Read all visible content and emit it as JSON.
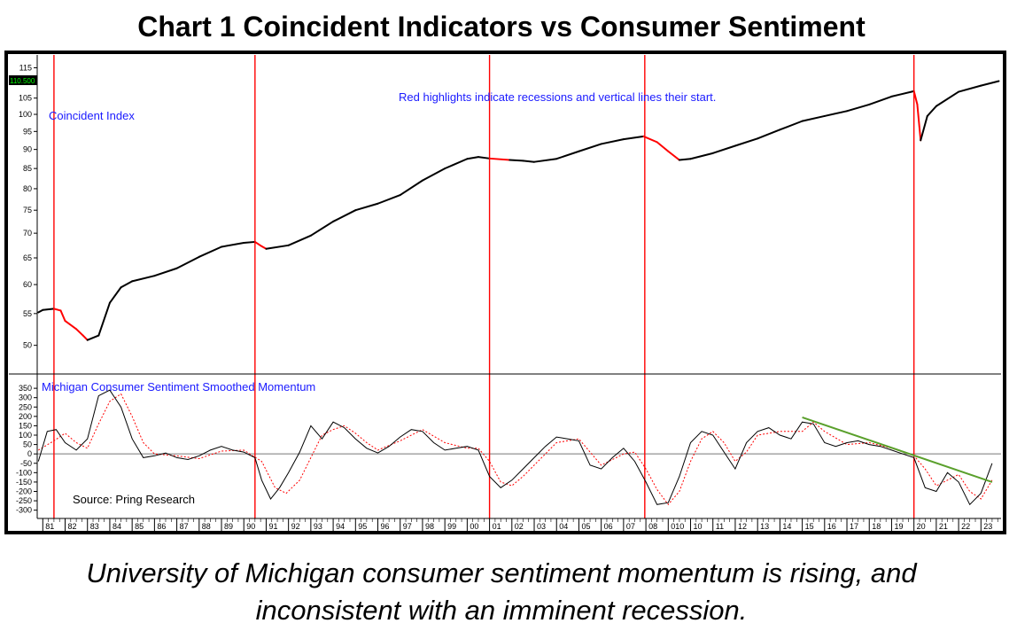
{
  "title": "Chart 1 Coincident Indicators vs Consumer Sentiment",
  "caption_line1": "University of Michigan consumer sentiment momentum is rising, and",
  "caption_line2": "inconsistent with an imminent recession.",
  "annotations": {
    "recession_note": "Red highlights indicate recessions and vertical lines their start.",
    "upper_panel_label": "Coincident Index",
    "lower_panel_label": "Michigan Consumer Sentiment Smoothed Momentum",
    "source": "Source: Pring Research",
    "last_value_badge": "110.500"
  },
  "colors": {
    "index_line": "#000000",
    "recession_highlight": "#ff0000",
    "recession_start_line": "#ff0000",
    "momentum_line": "#000000",
    "momentum_signal": "#ff0000",
    "trendline": "#5aa02c",
    "annotation_text": "#1a1aff",
    "badge_background": "#000000",
    "badge_text": "#00ff00"
  },
  "chart_data": [
    {
      "type": "line",
      "name": "Coincident Index",
      "y_scale": "log",
      "ylim": [
        48,
        117
      ],
      "yticks": [
        50,
        55,
        60,
        65,
        70,
        75,
        80,
        85,
        90,
        95,
        100,
        105,
        110,
        115
      ],
      "xlim": [
        1980.75,
        2023.9
      ],
      "x": [
        1980.8,
        1981.0,
        1981.5,
        1981.8,
        1982.0,
        1982.5,
        1982.8,
        1983.0,
        1983.5,
        1984.0,
        1984.5,
        1985.0,
        1986.0,
        1987.0,
        1988.0,
        1989.0,
        1990.0,
        1990.5,
        1990.8,
        1991.0,
        1992.0,
        1993.0,
        1994.0,
        1995.0,
        1996.0,
        1997.0,
        1998.0,
        1999.0,
        2000.0,
        2000.5,
        2001.0,
        2001.9,
        2002.5,
        2003.0,
        2004.0,
        2005.0,
        2006.0,
        2007.0,
        2007.9,
        2008.5,
        2009.0,
        2009.5,
        2010.0,
        2011.0,
        2012.0,
        2013.0,
        2014.0,
        2015.0,
        2016.0,
        2017.0,
        2018.0,
        2019.0,
        2020.0,
        2020.15,
        2020.3,
        2020.6,
        2021.0,
        2022.0,
        2023.0,
        2023.8
      ],
      "y": [
        55.2,
        55.6,
        55.8,
        55.5,
        53.8,
        52.5,
        51.5,
        50.8,
        51.5,
        56.8,
        59.5,
        60.6,
        61.6,
        63.0,
        65.2,
        67.2,
        68.0,
        68.2,
        67.3,
        66.8,
        67.5,
        69.5,
        72.5,
        75.0,
        76.5,
        78.5,
        82.0,
        85.0,
        87.5,
        88.0,
        87.6,
        87.2,
        87.0,
        86.7,
        87.5,
        89.5,
        91.5,
        92.8,
        93.6,
        92.0,
        89.5,
        87.2,
        87.5,
        89.0,
        91.0,
        93.0,
        95.5,
        98.0,
        99.5,
        101.0,
        103.0,
        105.5,
        107.2,
        103.0,
        92.5,
        99.5,
        102.5,
        107.0,
        109.0,
        110.5
      ],
      "recession_periods": [
        [
          1981.5,
          1982.9
        ],
        [
          1990.5,
          1991.2
        ],
        [
          2001.2,
          2001.9
        ],
        [
          2007.95,
          2009.5
        ],
        [
          2020.0,
          2020.35
        ]
      ]
    },
    {
      "type": "line",
      "name": "Michigan Consumer Sentiment Smoothed Momentum",
      "ylim": [
        -330,
        360
      ],
      "yticks": [
        350,
        300,
        250,
        200,
        150,
        100,
        50,
        0,
        -50,
        -100,
        -150,
        -200,
        -250,
        -300
      ],
      "series": [
        {
          "name": "momentum",
          "x": [
            1980.8,
            1981.2,
            1981.6,
            1982.0,
            1982.5,
            1983.0,
            1983.5,
            1984.0,
            1984.5,
            1985.0,
            1985.5,
            1986.0,
            1986.5,
            1987.0,
            1987.5,
            1988.0,
            1988.5,
            1989.0,
            1989.5,
            1990.0,
            1990.5,
            1990.8,
            1991.2,
            1991.6,
            1992.0,
            1992.5,
            1993.0,
            1993.5,
            1994.0,
            1994.5,
            1995.0,
            1995.5,
            1996.0,
            1996.5,
            1997.0,
            1997.5,
            1998.0,
            1998.5,
            1999.0,
            1999.5,
            2000.0,
            2000.5,
            2001.0,
            2001.5,
            2002.0,
            2002.5,
            2003.0,
            2003.5,
            2004.0,
            2004.5,
            2005.0,
            2005.5,
            2006.0,
            2006.5,
            2007.0,
            2007.5,
            2008.0,
            2008.5,
            2009.0,
            2009.5,
            2010.0,
            2010.5,
            2011.0,
            2011.5,
            2012.0,
            2012.5,
            2013.0,
            2013.5,
            2014.0,
            2014.5,
            2015.0,
            2015.5,
            2016.0,
            2016.5,
            2017.0,
            2017.5,
            2018.0,
            2018.5,
            2019.0,
            2019.5,
            2020.0,
            2020.5,
            2021.0,
            2021.5,
            2022.0,
            2022.5,
            2023.0,
            2023.5
          ],
          "y": [
            -40,
            120,
            130,
            60,
            20,
            80,
            310,
            340,
            250,
            80,
            -20,
            -10,
            5,
            -20,
            -30,
            -10,
            20,
            40,
            20,
            10,
            -20,
            -140,
            -240,
            -180,
            -100,
            10,
            150,
            80,
            170,
            140,
            80,
            30,
            5,
            40,
            90,
            130,
            120,
            60,
            20,
            30,
            40,
            20,
            -120,
            -180,
            -140,
            -80,
            -20,
            40,
            90,
            80,
            70,
            -60,
            -80,
            -20,
            30,
            -40,
            -150,
            -270,
            -260,
            -120,
            60,
            120,
            100,
            10,
            -80,
            60,
            120,
            140,
            100,
            80,
            170,
            160,
            60,
            40,
            60,
            70,
            50,
            40,
            20,
            0,
            -20,
            -180,
            -200,
            -100,
            -150,
            -270,
            -210,
            -50
          ]
        },
        {
          "name": "signal",
          "x": [
            1980.8,
            1981.5,
            1982.0,
            1982.5,
            1983.0,
            1983.5,
            1984.0,
            1984.5,
            1985.0,
            1985.5,
            1986.0,
            1987.0,
            1988.0,
            1989.0,
            1990.0,
            1990.8,
            1991.4,
            1991.9,
            1992.5,
            1993.0,
            1993.5,
            1994.0,
            1994.5,
            1995.0,
            1995.5,
            1996.0,
            1997.0,
            1998.0,
            1999.0,
            2000.0,
            2000.5,
            2001.0,
            2001.5,
            2002.0,
            2002.5,
            2003.0,
            2004.0,
            2005.0,
            2005.5,
            2006.0,
            2007.0,
            2007.5,
            2008.0,
            2008.5,
            2009.0,
            2009.5,
            2010.0,
            2010.5,
            2011.0,
            2011.5,
            2012.0,
            2012.5,
            2013.0,
            2014.0,
            2015.0,
            2015.5,
            2016.0,
            2017.0,
            2018.0,
            2019.0,
            2020.0,
            2020.5,
            2021.0,
            2021.5,
            2022.0,
            2022.5,
            2023.0,
            2023.5
          ],
          "y": [
            20,
            70,
            110,
            60,
            30,
            160,
            280,
            320,
            200,
            60,
            0,
            -10,
            -25,
            15,
            20,
            -40,
            -180,
            -210,
            -140,
            -20,
            100,
            130,
            150,
            110,
            60,
            20,
            70,
            130,
            60,
            30,
            30,
            -40,
            -150,
            -170,
            -120,
            -60,
            60,
            80,
            10,
            -60,
            0,
            10,
            -80,
            -190,
            -270,
            -200,
            -40,
            80,
            120,
            60,
            -40,
            10,
            100,
            120,
            120,
            170,
            120,
            50,
            60,
            30,
            -10,
            -80,
            -170,
            -140,
            -110,
            -200,
            -240,
            -140
          ]
        }
      ],
      "trendline": {
        "x": [
          2015.0,
          2023.5
        ],
        "y": [
          195,
          -150
        ]
      },
      "xlim": [
        1980.75,
        2023.9
      ],
      "x_tick_labels": [
        "81",
        "82",
        "83",
        "84",
        "85",
        "86",
        "87",
        "88",
        "89",
        "90",
        "91",
        "92",
        "93",
        "94",
        "95",
        "96",
        "97",
        "98",
        "99",
        "00",
        "01",
        "02",
        "03",
        "04",
        "05",
        "06",
        "07",
        "08",
        "010",
        "10",
        "11",
        "12",
        "13",
        "14",
        "15",
        "16",
        "17",
        "18",
        "19",
        "20",
        "21",
        "22",
        "23"
      ],
      "recession_start_lines": [
        1981.5,
        1990.5,
        2001.0,
        2007.95,
        2020.0
      ]
    }
  ]
}
